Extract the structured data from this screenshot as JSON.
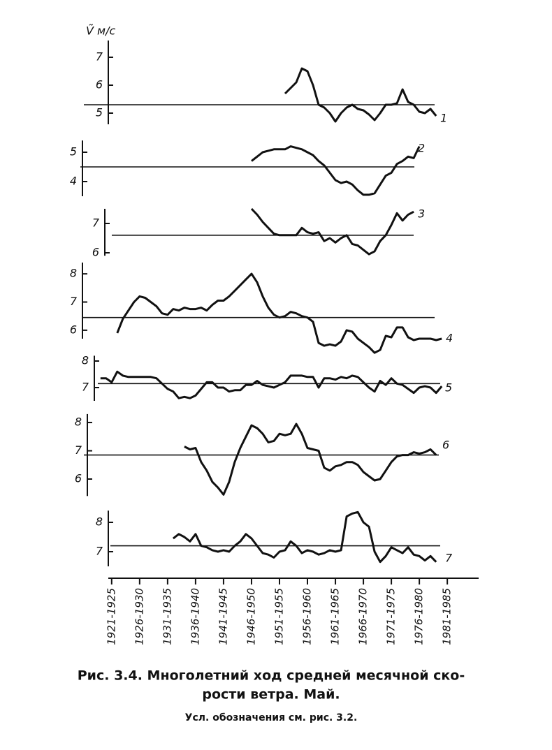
{
  "chart_data": [
    {
      "type": "line",
      "ylabel": "Ṽ м/с",
      "ylim": [
        4.6,
        7.6
      ],
      "yticks": [
        5,
        6,
        7
      ],
      "mean": 5.3,
      "x": [
        1954,
        1955,
        1956,
        1957,
        1958,
        1959,
        1960,
        1961,
        1962,
        1963,
        1964,
        1965,
        1966,
        1967,
        1968,
        1969,
        1970,
        1971,
        1972,
        1973,
        1974,
        1975,
        1976,
        1977,
        1978,
        1979,
        1980,
        1981
      ],
      "series": [
        {
          "name": "1",
          "color": "#111111",
          "values": [
            5.7,
            5.9,
            6.1,
            6.6,
            6.5,
            6.0,
            5.3,
            5.2,
            5.0,
            4.7,
            5.0,
            5.2,
            5.3,
            5.15,
            5.1,
            4.95,
            4.75,
            5.0,
            5.3,
            5.3,
            5.35,
            5.85,
            5.4,
            5.3,
            5.05,
            5.0,
            5.15,
            4.9
          ]
        }
      ]
    },
    {
      "type": "line",
      "ylim": [
        3.5,
        5.4
      ],
      "yticks": [
        4,
        5
      ],
      "mean": 4.5,
      "x": [
        1948,
        1949,
        1950,
        1951,
        1952,
        1953,
        1954,
        1955,
        1956,
        1957,
        1958,
        1959,
        1960,
        1961,
        1962,
        1963,
        1964,
        1965,
        1966,
        1967,
        1968,
        1969,
        1970,
        1971,
        1972,
        1973,
        1974,
        1975,
        1976,
        1977,
        1978
      ],
      "series": [
        {
          "name": "2",
          "color": "#111111",
          "values": [
            4.7,
            4.85,
            5.0,
            5.05,
            5.1,
            5.1,
            5.1,
            5.2,
            5.15,
            5.1,
            5.0,
            4.9,
            4.7,
            4.55,
            4.3,
            4.05,
            3.95,
            4.0,
            3.9,
            3.7,
            3.55,
            3.55,
            3.6,
            3.9,
            4.2,
            4.3,
            4.6,
            4.7,
            4.85,
            4.8,
            5.2
          ]
        }
      ]
    },
    {
      "type": "line",
      "ylim": [
        5.9,
        7.5
      ],
      "yticks": [
        6,
        7
      ],
      "mean": 6.6,
      "x": [
        1948,
        1949,
        1950,
        1951,
        1952,
        1953,
        1954,
        1955,
        1956,
        1957,
        1958,
        1959,
        1960,
        1961,
        1962,
        1963,
        1964,
        1965,
        1966,
        1967,
        1968,
        1969,
        1970,
        1971,
        1972,
        1973,
        1974,
        1975,
        1976,
        1977
      ],
      "series": [
        {
          "name": "3",
          "color": "#111111",
          "values": [
            7.5,
            7.3,
            7.05,
            6.85,
            6.65,
            6.6,
            6.6,
            6.6,
            6.6,
            6.85,
            6.7,
            6.65,
            6.7,
            6.4,
            6.5,
            6.35,
            6.5,
            6.6,
            6.3,
            6.25,
            6.1,
            5.95,
            6.05,
            6.4,
            6.6,
            6.95,
            7.35,
            7.1,
            7.3,
            7.4
          ]
        }
      ]
    },
    {
      "type": "line",
      "ylim": [
        5.7,
        8.4
      ],
      "yticks": [
        6,
        7,
        8
      ],
      "mean": 6.45,
      "x": [
        1924,
        1925,
        1926,
        1927,
        1928,
        1929,
        1930,
        1931,
        1932,
        1933,
        1934,
        1935,
        1936,
        1937,
        1938,
        1939,
        1940,
        1941,
        1942,
        1943,
        1944,
        1945,
        1946,
        1947,
        1948,
        1949,
        1950,
        1951,
        1952,
        1953,
        1954,
        1955,
        1956,
        1957,
        1958,
        1959,
        1960,
        1961,
        1962,
        1963,
        1964,
        1965,
        1966,
        1967,
        1968,
        1969,
        1970,
        1971,
        1972,
        1973,
        1974,
        1975,
        1976,
        1977,
        1978,
        1979,
        1980,
        1981,
        1982
      ],
      "series": [
        {
          "name": "4",
          "color": "#111111",
          "values": [
            5.9,
            6.4,
            6.7,
            7.0,
            7.2,
            7.15,
            7.0,
            6.85,
            6.6,
            6.55,
            6.75,
            6.7,
            6.8,
            6.75,
            6.75,
            6.8,
            6.7,
            6.9,
            7.05,
            7.05,
            7.2,
            7.4,
            7.6,
            7.8,
            8.0,
            7.7,
            7.2,
            6.8,
            6.55,
            6.45,
            6.5,
            6.65,
            6.6,
            6.5,
            6.45,
            6.3,
            5.55,
            5.45,
            5.5,
            5.45,
            5.6,
            6.0,
            5.95,
            5.7,
            5.55,
            5.4,
            5.2,
            5.3,
            5.8,
            5.75,
            6.1,
            6.1,
            5.75,
            5.65,
            5.7,
            5.7,
            5.7,
            5.65,
            5.7
          ]
        }
      ]
    },
    {
      "type": "line",
      "ylim": [
        6.5,
        8.2
      ],
      "yticks": [
        7,
        8
      ],
      "mean": 7.15,
      "x": [
        1921,
        1922,
        1923,
        1924,
        1925,
        1926,
        1927,
        1928,
        1929,
        1930,
        1931,
        1932,
        1933,
        1934,
        1935,
        1936,
        1937,
        1938,
        1939,
        1940,
        1941,
        1942,
        1943,
        1944,
        1945,
        1946,
        1947,
        1948,
        1949,
        1950,
        1951,
        1952,
        1953,
        1954,
        1955,
        1956,
        1957,
        1958,
        1959,
        1960,
        1961,
        1962,
        1963,
        1964,
        1965,
        1966,
        1967,
        1968,
        1969,
        1970,
        1971,
        1972,
        1973,
        1974,
        1975,
        1976,
        1977,
        1978,
        1979,
        1980,
        1981,
        1982
      ],
      "series": [
        {
          "name": "5",
          "color": "#111111",
          "values": [
            7.35,
            7.35,
            7.2,
            7.6,
            7.45,
            7.4,
            7.4,
            7.4,
            7.4,
            7.4,
            7.35,
            7.15,
            6.95,
            6.85,
            6.6,
            6.65,
            6.6,
            6.7,
            6.95,
            7.2,
            7.2,
            7.0,
            7.0,
            6.85,
            6.9,
            6.9,
            7.1,
            7.1,
            7.25,
            7.1,
            7.05,
            7.0,
            7.1,
            7.2,
            7.45,
            7.45,
            7.45,
            7.4,
            7.4,
            7.0,
            7.35,
            7.35,
            7.3,
            7.4,
            7.35,
            7.45,
            7.4,
            7.2,
            7.0,
            6.85,
            7.25,
            7.1,
            7.35,
            7.15,
            7.1,
            6.95,
            6.8,
            7.0,
            7.05,
            7.0,
            6.8,
            7.05
          ]
        }
      ]
    },
    {
      "type": "line",
      "ylim": [
        5.4,
        8.3
      ],
      "yticks": [
        6,
        7,
        8
      ],
      "mean": 6.85,
      "x": [
        1936,
        1937,
        1938,
        1939,
        1940,
        1941,
        1942,
        1943,
        1944,
        1945,
        1946,
        1947,
        1948,
        1949,
        1950,
        1951,
        1952,
        1953,
        1954,
        1955,
        1956,
        1957,
        1958,
        1959,
        1960,
        1961,
        1962,
        1963,
        1964,
        1965,
        1966,
        1967,
        1968,
        1969,
        1970,
        1971,
        1972,
        1973,
        1974,
        1975,
        1976,
        1977,
        1978,
        1979,
        1980,
        1981
      ],
      "series": [
        {
          "name": "6",
          "color": "#111111",
          "values": [
            7.15,
            7.05,
            7.1,
            6.6,
            6.3,
            5.9,
            5.7,
            5.45,
            5.9,
            6.6,
            7.1,
            7.5,
            7.9,
            7.8,
            7.6,
            7.3,
            7.35,
            7.6,
            7.55,
            7.6,
            7.95,
            7.6,
            7.1,
            7.05,
            7.0,
            6.4,
            6.3,
            6.45,
            6.5,
            6.6,
            6.6,
            6.5,
            6.25,
            6.1,
            5.95,
            6.0,
            6.3,
            6.6,
            6.8,
            6.85,
            6.85,
            6.95,
            6.9,
            6.95,
            7.05,
            6.85
          ]
        }
      ]
    },
    {
      "type": "line",
      "ylim": [
        6.5,
        8.4
      ],
      "yticks": [
        7,
        8
      ],
      "mean": 7.2,
      "xlim": [
        1922.4,
        1988.6
      ],
      "xticks": [
        {
          "value": 1923,
          "label": "1921-1925"
        },
        {
          "value": 1928,
          "label": "1926-1930"
        },
        {
          "value": 1933,
          "label": "1931-1935"
        },
        {
          "value": 1938,
          "label": "1936-1940"
        },
        {
          "value": 1943,
          "label": "1941-1945"
        },
        {
          "value": 1948,
          "label": "1946-1950"
        },
        {
          "value": 1953,
          "label": "1951-1955"
        },
        {
          "value": 1958,
          "label": "1956-1960"
        },
        {
          "value": 1963,
          "label": "1961-1965"
        },
        {
          "value": 1968,
          "label": "1966-1970"
        },
        {
          "value": 1973,
          "label": "1971-1975"
        },
        {
          "value": 1978,
          "label": "1976-1980"
        },
        {
          "value": 1983,
          "label": "1981-1985"
        }
      ],
      "x": [
        1934,
        1935,
        1936,
        1937,
        1938,
        1939,
        1940,
        1941,
        1942,
        1943,
        1944,
        1945,
        1946,
        1947,
        1948,
        1949,
        1950,
        1951,
        1952,
        1953,
        1954,
        1955,
        1956,
        1957,
        1958,
        1959,
        1960,
        1961,
        1962,
        1963,
        1964,
        1965,
        1966,
        1967,
        1968,
        1969,
        1970,
        1971,
        1972,
        1973,
        1974,
        1975,
        1976,
        1977,
        1978,
        1979,
        1980,
        1981
      ],
      "series": [
        {
          "name": "7",
          "color": "#111111",
          "values": [
            7.45,
            7.6,
            7.5,
            7.35,
            7.6,
            7.2,
            7.15,
            7.05,
            7.0,
            7.05,
            7.0,
            7.2,
            7.35,
            7.6,
            7.45,
            7.2,
            6.95,
            6.9,
            6.8,
            7.0,
            7.05,
            7.35,
            7.2,
            6.95,
            7.05,
            7.0,
            6.9,
            6.95,
            7.05,
            7.0,
            7.05,
            8.2,
            8.3,
            8.35,
            8.0,
            7.85,
            7.0,
            6.65,
            6.85,
            7.15,
            7.05,
            6.95,
            7.15,
            6.9,
            6.85,
            6.7,
            6.85,
            6.65
          ]
        }
      ]
    }
  ],
  "caption": [
    "Рис. 3.4. Многолетний ход средней месячной ско-",
    "рости ветра. Май."
  ],
  "note": "Усл. обозначения см. рис. 3.2."
}
